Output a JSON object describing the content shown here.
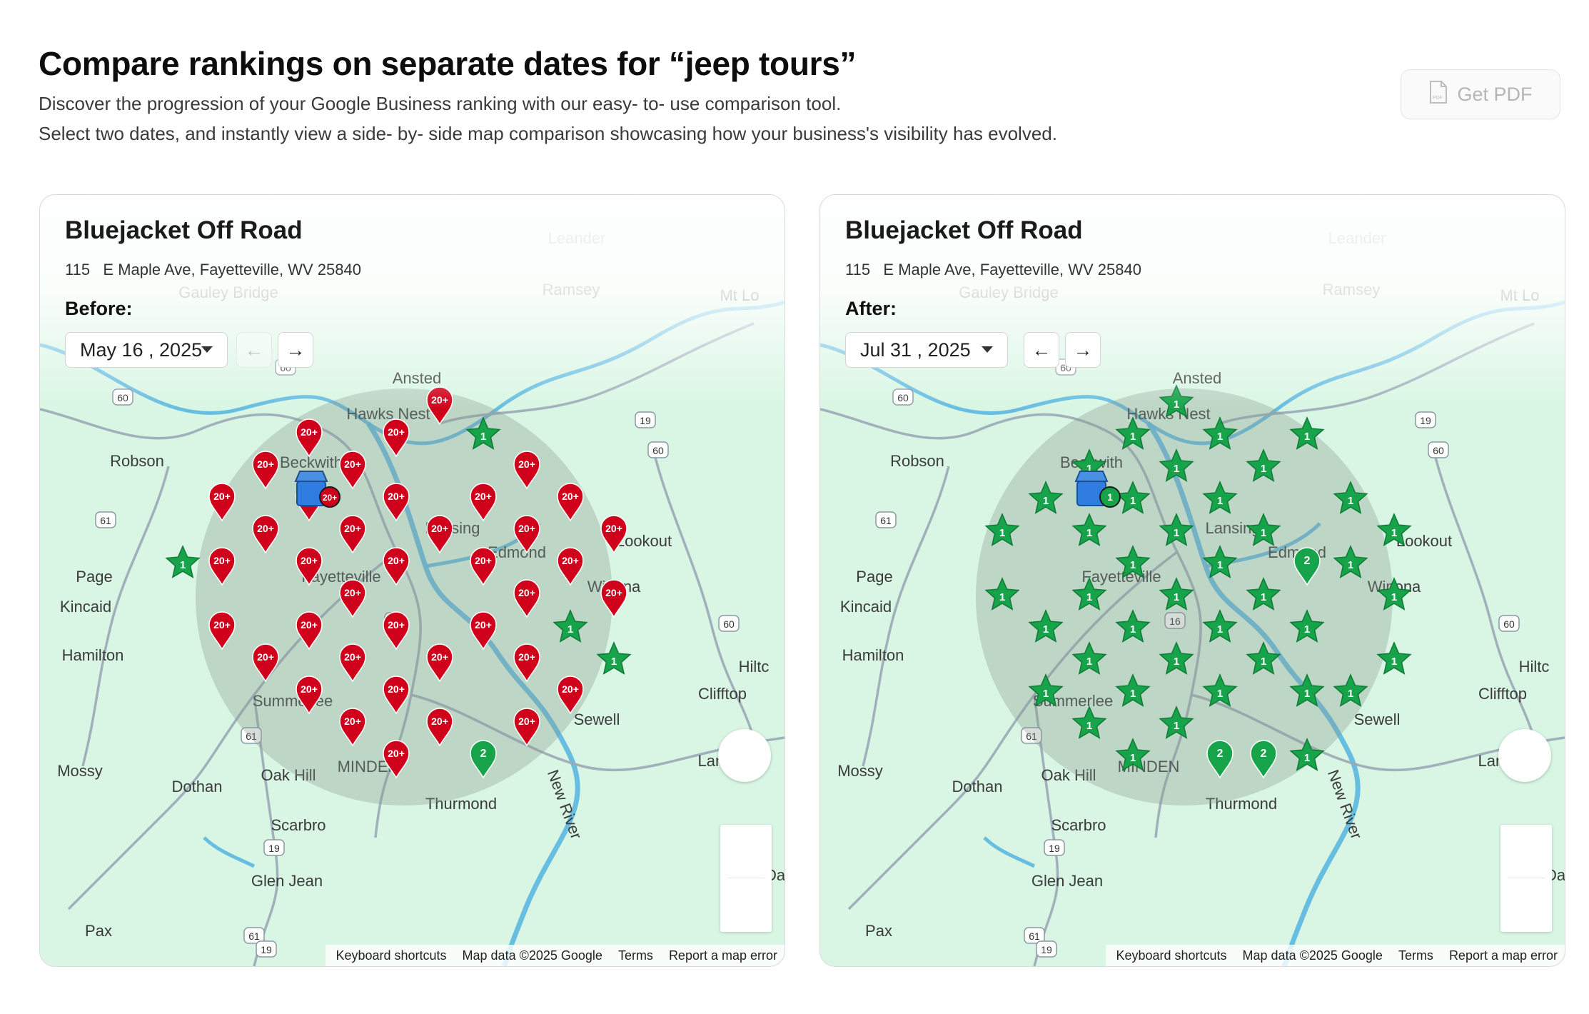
{
  "header": {
    "title": "Compare rankings on separate dates for “jeep tours”",
    "subtitle_line1": "Discover the progression of your Google Business ranking with our easy- to- use comparison tool.",
    "subtitle_line2": "Select two dates, and instantly view a side- by- side map comparison showcasing how your business's visibility has evolved.",
    "pdf_button_label": "Get PDF",
    "pdf_icon": "pdf-file-icon"
  },
  "colors": {
    "rank_red": "#d0021b",
    "rank_green": "#16a34a",
    "map_land": "#d9f6e4",
    "map_water": "#5bb8e0",
    "radius_circle": "#8a9c8f"
  },
  "map_labels": [
    "Ansted",
    "Hawks Nest",
    "Beckwith",
    "Robson",
    "Lansing",
    "Edmond",
    "Lookout",
    "Winona",
    "Page",
    "Kincaid",
    "Fayetteville",
    "Hamilton",
    "Summerlee",
    "Glen Jean",
    "Oak Hill",
    "Dothan",
    "Mossy",
    "Scarbro",
    "Thurmond",
    "Sewell",
    "Clifftop",
    "Land",
    "Pax",
    "Leander",
    "Ramsey",
    "Gauley Bridge",
    "Mt Lo",
    "Hiltc",
    "Da",
    "New River",
    "MINDEN"
  ],
  "road_shields": [
    "60",
    "60",
    "19",
    "60",
    "61",
    "16",
    "61",
    "19",
    "61",
    "60",
    "19"
  ],
  "map_attribution": {
    "shortcuts": "Keyboard shortcuts",
    "data": "Map data ©2025 Google",
    "terms": "Terms",
    "report": "Report a map error"
  },
  "panels": [
    {
      "business_name": "Bluejacket Off Road",
      "address_number": "115",
      "address_street": "E Maple Ave, Fayetteville, WV 25840",
      "period_label": "Before:",
      "date": "May 16 , 2025",
      "center_rank": "20+",
      "prev_disabled": true,
      "markers": [
        {
          "shape": "pin",
          "rank": "20+",
          "col": 0,
          "row": 2
        },
        {
          "shape": "pin",
          "rank": "20+",
          "col": 0,
          "row": 4
        },
        {
          "shape": "pin",
          "rank": "20+",
          "col": 0,
          "row": 6
        },
        {
          "shape": "pin",
          "rank": "20+",
          "col": 1,
          "row": 1
        },
        {
          "shape": "pin",
          "rank": "20+",
          "col": 1,
          "row": 3
        },
        {
          "shape": "star",
          "rank": "1",
          "col": -1,
          "row": 4
        },
        {
          "shape": "pin",
          "rank": "20+",
          "col": 1,
          "row": 7
        },
        {
          "shape": "pin",
          "rank": "20+",
          "col": 2,
          "row": 0
        },
        {
          "shape": "pin",
          "rank": "20+",
          "col": 2,
          "row": 2
        },
        {
          "shape": "pin",
          "rank": "20+",
          "col": 2,
          "row": 4
        },
        {
          "shape": "pin",
          "rank": "20+",
          "col": 2,
          "row": 6
        },
        {
          "shape": "pin",
          "rank": "20+",
          "col": 2,
          "row": 8
        },
        {
          "shape": "pin",
          "rank": "20+",
          "col": 3,
          "row": 1
        },
        {
          "shape": "pin",
          "rank": "20+",
          "col": 3,
          "row": 3
        },
        {
          "shape": "pin",
          "rank": "20+",
          "col": 3,
          "row": 5
        },
        {
          "shape": "pin",
          "rank": "20+",
          "col": 3,
          "row": 7
        },
        {
          "shape": "pin",
          "rank": "20+",
          "col": 3,
          "row": 9
        },
        {
          "shape": "pin",
          "rank": "20+",
          "col": 4,
          "row": 0
        },
        {
          "shape": "pin",
          "rank": "20+",
          "col": 4,
          "row": 2
        },
        {
          "shape": "pin",
          "rank": "20+",
          "col": 4,
          "row": 4
        },
        {
          "shape": "pin",
          "rank": "20+",
          "col": 4,
          "row": 6
        },
        {
          "shape": "pin",
          "rank": "20+",
          "col": 4,
          "row": 8
        },
        {
          "shape": "pin",
          "rank": "20+",
          "col": 4,
          "row": 10
        },
        {
          "shape": "pin",
          "rank": "20+",
          "col": 5,
          "row": -1
        },
        {
          "shape": "pin",
          "rank": "20+",
          "col": 5,
          "row": 3
        },
        {
          "shape": "pin",
          "rank": "20+",
          "col": 5,
          "row": 7
        },
        {
          "shape": "pin",
          "rank": "20+",
          "col": 5,
          "row": 9
        },
        {
          "shape": "star",
          "rank": "1",
          "col": 6,
          "row": 0
        },
        {
          "shape": "pin",
          "rank": "20+",
          "col": 6,
          "row": 2
        },
        {
          "shape": "pin",
          "rank": "20+",
          "col": 6,
          "row": 4
        },
        {
          "shape": "pin",
          "rank": "20+",
          "col": 6,
          "row": 6
        },
        {
          "shape": "pin",
          "rank": "2",
          "col": 6,
          "row": 10
        },
        {
          "shape": "pin",
          "rank": "20+",
          "col": 7,
          "row": 1
        },
        {
          "shape": "pin",
          "rank": "20+",
          "col": 7,
          "row": 3
        },
        {
          "shape": "pin",
          "rank": "20+",
          "col": 7,
          "row": 5
        },
        {
          "shape": "pin",
          "rank": "20+",
          "col": 7,
          "row": 7
        },
        {
          "shape": "pin",
          "rank": "20+",
          "col": 7,
          "row": 9
        },
        {
          "shape": "pin",
          "rank": "20+",
          "col": 8,
          "row": 2
        },
        {
          "shape": "pin",
          "rank": "20+",
          "col": 8,
          "row": 4
        },
        {
          "shape": "star",
          "rank": "1",
          "col": 8,
          "row": 6
        },
        {
          "shape": "pin",
          "rank": "20+",
          "col": 8,
          "row": 8
        },
        {
          "shape": "pin",
          "rank": "20+",
          "col": 9,
          "row": 3
        },
        {
          "shape": "pin",
          "rank": "20+",
          "col": 9,
          "row": 5
        },
        {
          "shape": "star",
          "rank": "1",
          "col": 9,
          "row": 7
        }
      ]
    },
    {
      "business_name": "Bluejacket Off Road",
      "address_number": "115",
      "address_street": "E Maple Ave, Fayetteville, WV 25840",
      "period_label": "After:",
      "date": "Jul 31 , 2025",
      "center_rank": "1",
      "prev_disabled": false,
      "markers": [
        {
          "shape": "star",
          "rank": "1",
          "col": 0,
          "row": 3
        },
        {
          "shape": "star",
          "rank": "1",
          "col": 0,
          "row": 5
        },
        {
          "shape": "star",
          "rank": "1",
          "col": 1,
          "row": 2
        },
        {
          "shape": "star",
          "rank": "1",
          "col": 1,
          "row": 6
        },
        {
          "shape": "star",
          "rank": "1",
          "col": 1,
          "row": 8
        },
        {
          "shape": "star",
          "rank": "1",
          "col": 2,
          "row": 1
        },
        {
          "shape": "star",
          "rank": "1",
          "col": 2,
          "row": 3
        },
        {
          "shape": "star",
          "rank": "1",
          "col": 2,
          "row": 5
        },
        {
          "shape": "star",
          "rank": "1",
          "col": 2,
          "row": 7
        },
        {
          "shape": "star",
          "rank": "1",
          "col": 2,
          "row": 9
        },
        {
          "shape": "star",
          "rank": "1",
          "col": 3,
          "row": 0
        },
        {
          "shape": "star",
          "rank": "1",
          "col": 3,
          "row": 2
        },
        {
          "shape": "star",
          "rank": "1",
          "col": 3,
          "row": 4
        },
        {
          "shape": "star",
          "rank": "1",
          "col": 3,
          "row": 6
        },
        {
          "shape": "star",
          "rank": "1",
          "col": 3,
          "row": 8
        },
        {
          "shape": "star",
          "rank": "1",
          "col": 3,
          "row": 10
        },
        {
          "shape": "star",
          "rank": "1",
          "col": 4,
          "row": -1
        },
        {
          "shape": "star",
          "rank": "1",
          "col": 4,
          "row": 1
        },
        {
          "shape": "star",
          "rank": "1",
          "col": 4,
          "row": 3
        },
        {
          "shape": "star",
          "rank": "1",
          "col": 4,
          "row": 5
        },
        {
          "shape": "star",
          "rank": "1",
          "col": 4,
          "row": 7
        },
        {
          "shape": "star",
          "rank": "1",
          "col": 4,
          "row": 9
        },
        {
          "shape": "star",
          "rank": "1",
          "col": 5,
          "row": 0
        },
        {
          "shape": "star",
          "rank": "1",
          "col": 5,
          "row": 2
        },
        {
          "shape": "star",
          "rank": "1",
          "col": 5,
          "row": 4
        },
        {
          "shape": "star",
          "rank": "1",
          "col": 5,
          "row": 6
        },
        {
          "shape": "star",
          "rank": "1",
          "col": 5,
          "row": 8
        },
        {
          "shape": "pin",
          "rank": "2",
          "col": 5,
          "row": 10
        },
        {
          "shape": "star",
          "rank": "1",
          "col": 6,
          "row": 1
        },
        {
          "shape": "star",
          "rank": "1",
          "col": 6,
          "row": 3
        },
        {
          "shape": "star",
          "rank": "1",
          "col": 6,
          "row": 5
        },
        {
          "shape": "star",
          "rank": "1",
          "col": 6,
          "row": 7
        },
        {
          "shape": "pin",
          "rank": "2",
          "col": 6,
          "row": 10
        },
        {
          "shape": "star",
          "rank": "1",
          "col": 7,
          "row": 0
        },
        {
          "shape": "pin",
          "rank": "2",
          "col": 7,
          "row": 4
        },
        {
          "shape": "star",
          "rank": "1",
          "col": 7,
          "row": 6
        },
        {
          "shape": "star",
          "rank": "1",
          "col": 7,
          "row": 8
        },
        {
          "shape": "star",
          "rank": "1",
          "col": 7,
          "row": 10
        },
        {
          "shape": "star",
          "rank": "1",
          "col": 8,
          "row": 2
        },
        {
          "shape": "star",
          "rank": "1",
          "col": 8,
          "row": 4
        },
        {
          "shape": "star",
          "rank": "1",
          "col": 8,
          "row": 8
        },
        {
          "shape": "star",
          "rank": "1",
          "col": 9,
          "row": 3
        },
        {
          "shape": "star",
          "rank": "1",
          "col": 9,
          "row": 5
        },
        {
          "shape": "star",
          "rank": "1",
          "col": 9,
          "row": 7
        }
      ]
    }
  ]
}
